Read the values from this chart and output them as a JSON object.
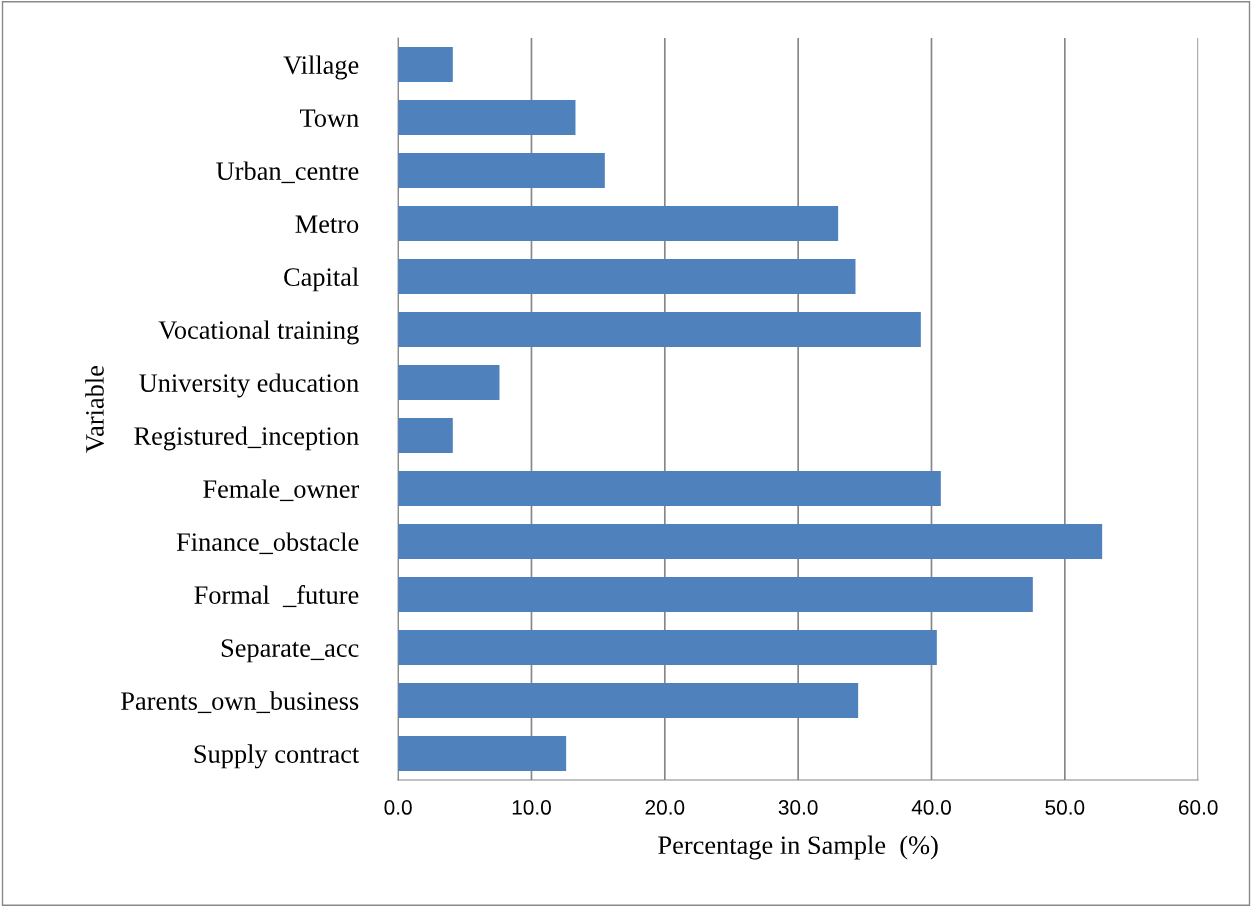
{
  "chart_data": {
    "type": "bar",
    "orientation": "horizontal",
    "xlabel": "Percentage in Sample  (%)",
    "ylabel": "Variable",
    "categories": [
      "Village",
      "Town",
      "Urban_centre",
      "Metro",
      "Capital",
      "Vocational training",
      "University education",
      "Registured_inception",
      "Female_owner",
      "Finance_obstacle",
      "Formal  _future",
      "Separate_acc",
      "Parents_own_business",
      "Supply contract"
    ],
    "values": [
      4.1,
      13.3,
      15.5,
      33.0,
      34.3,
      39.2,
      7.6,
      4.1,
      40.7,
      52.8,
      47.6,
      40.4,
      34.5,
      12.6
    ],
    "color": "#4f81bd",
    "xlim": [
      0,
      60
    ],
    "xticks": [
      {
        "value": 0,
        "label": "0.0"
      },
      {
        "value": 10,
        "label": "10.0"
      },
      {
        "value": 20,
        "label": "20.0"
      },
      {
        "value": 30,
        "label": "30.0"
      },
      {
        "value": 40,
        "label": "40.0"
      },
      {
        "value": 50,
        "label": "50.0"
      },
      {
        "value": 60,
        "label": "60.0"
      }
    ],
    "grid": "x",
    "legend": false
  }
}
